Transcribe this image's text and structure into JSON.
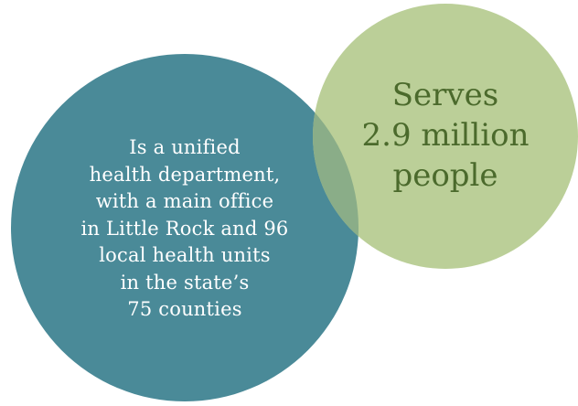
{
  "colors": {
    "left_circle": "#4a8a98",
    "right_circle": "#bbcf98",
    "overlap": "#8aad88",
    "left_text": "#ffffff",
    "right_text": "#4b6a2c"
  },
  "left_circle": {
    "lines": [
      "Is a unified",
      "health department,",
      "with a main office",
      "in Little Rock and 96",
      "local health units",
      "in the state’s",
      "75 counties"
    ]
  },
  "right_circle": {
    "lines": [
      "Serves",
      "2.9 million",
      "people"
    ]
  }
}
